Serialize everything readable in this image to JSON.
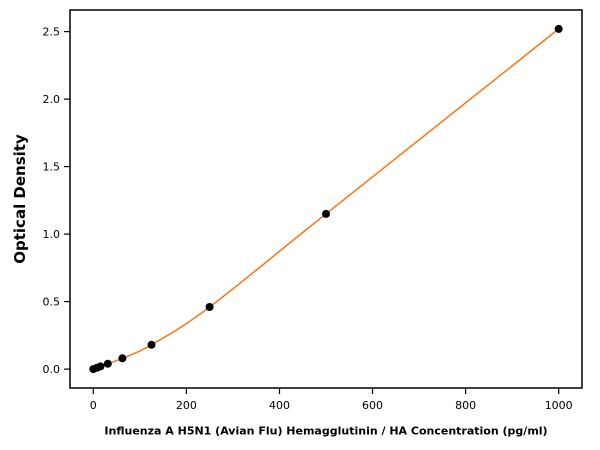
{
  "chart_data": {
    "type": "scatter",
    "title": "",
    "xlabel": "Influenza A H5N1 (Avian Flu) Hemagglutinin / HA Concentration (pg/ml)",
    "ylabel": "Optical Density",
    "x": [
      0,
      7.8,
      15.6,
      31.25,
      62.5,
      125,
      250,
      500,
      1000
    ],
    "y": [
      0.0,
      0.01,
      0.02,
      0.04,
      0.08,
      0.18,
      0.46,
      1.15,
      2.52
    ],
    "xlim": [
      -50,
      1050
    ],
    "ylim": [
      -0.14,
      2.66
    ],
    "x_tick_values": [
      0,
      200,
      400,
      600,
      800,
      1000
    ],
    "x_tick_labels": [
      "0",
      "200",
      "400",
      "600",
      "800",
      "1000"
    ],
    "y_tick_values": [
      0.0,
      0.5,
      1.0,
      1.5,
      2.0,
      2.5
    ],
    "y_tick_labels": [
      "0.0",
      "0.5",
      "1.0",
      "1.5",
      "2.0",
      "2.5"
    ],
    "grid": false,
    "legend": null,
    "line_color": "#f97c1e",
    "marker_color": "#000000",
    "axis_color": "#000000"
  }
}
